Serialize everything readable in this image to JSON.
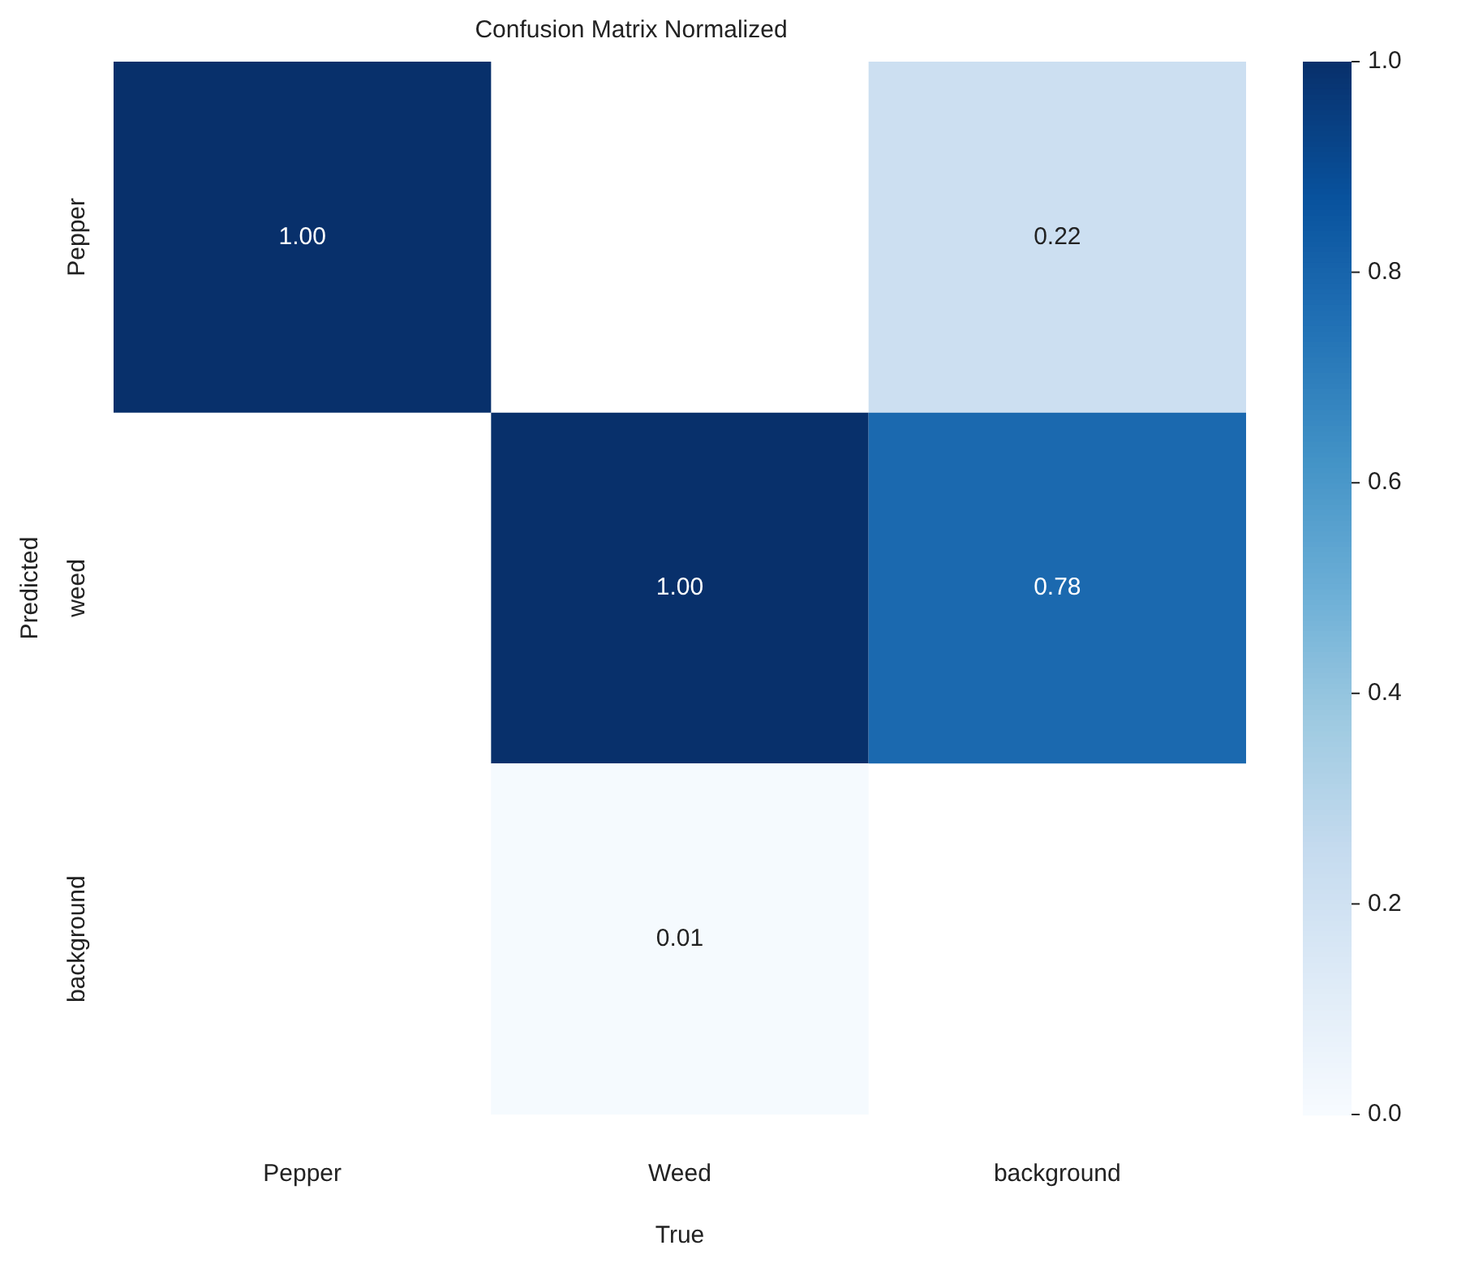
{
  "chart_data": {
    "type": "heatmap",
    "title": "Confusion Matrix Normalized",
    "xlabel": "True",
    "ylabel": "Predicted",
    "categories": [
      "Pepper",
      "Weed",
      "background"
    ],
    "y_categories": [
      "Pepper",
      "weed",
      "background"
    ],
    "cells": [
      [
        1.0,
        null,
        0.22
      ],
      [
        null,
        1.0,
        0.78
      ],
      [
        null,
        0.01,
        null
      ]
    ],
    "cell_labels": [
      [
        "1.00",
        null,
        "0.22"
      ],
      [
        null,
        "1.00",
        "0.78"
      ],
      [
        null,
        "0.01",
        null
      ]
    ],
    "clim": [
      0,
      1
    ],
    "cticks": [
      {
        "value": 0,
        "label": "0.0"
      },
      {
        "value": 0.2,
        "label": "0.2"
      },
      {
        "value": 0.4,
        "label": "0.4"
      },
      {
        "value": 0.6,
        "label": "0.6"
      },
      {
        "value": 0.8,
        "label": "0.8"
      },
      {
        "value": 1,
        "label": "1.0"
      }
    ]
  }
}
